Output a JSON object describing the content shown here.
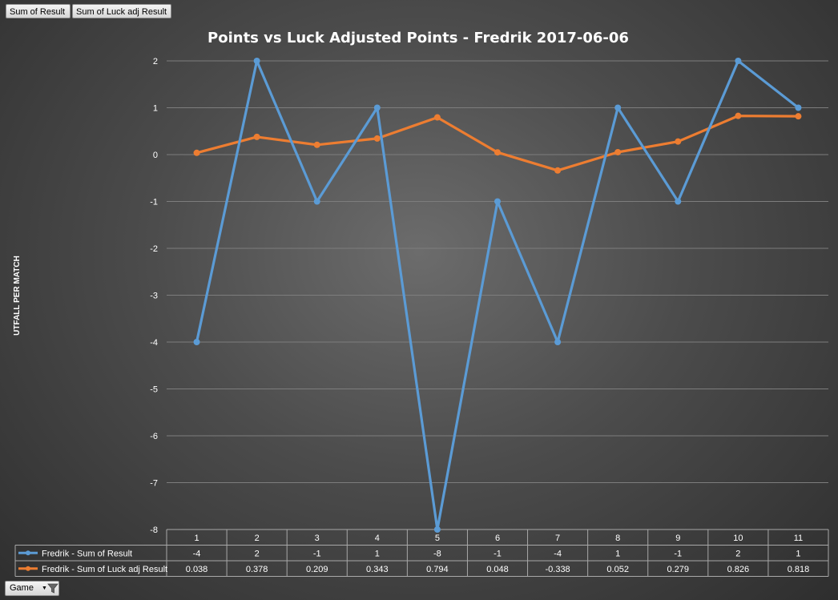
{
  "buttons": {
    "sum_of_result": "Sum of Result",
    "sum_of_luck_adj_result": "Sum of Luck adj Result",
    "game": "Game"
  },
  "chart_data": {
    "type": "line",
    "title": "Points vs Luck Adjusted Points - Fredrik 2017-06-06",
    "xlabel": "",
    "ylabel": "UTFALL PER MATCH",
    "ylim": [
      -8,
      2
    ],
    "yticks": [
      2,
      1,
      0,
      -1,
      -2,
      -3,
      -4,
      -5,
      -6,
      -7,
      -8
    ],
    "grid": true,
    "legend": "data-table",
    "categories": [
      "1",
      "2",
      "3",
      "4",
      "5",
      "6",
      "7",
      "8",
      "9",
      "10",
      "11"
    ],
    "series": [
      {
        "name": "Fredrik - Sum of Result",
        "color": "#5b9bd5",
        "values": [
          -4,
          2,
          -1,
          1,
          -8,
          -1,
          -4,
          1,
          -1,
          2,
          1
        ],
        "labels": [
          "-4",
          "2",
          "-1",
          "1",
          "-8",
          "-1",
          "-4",
          "1",
          "-1",
          "2",
          "1"
        ]
      },
      {
        "name": "Fredrik - Sum of Luck adj Result",
        "color": "#ed7d31",
        "values": [
          0.038,
          0.378,
          0.209,
          0.343,
          0.794,
          0.048,
          -0.338,
          0.052,
          0.279,
          0.826,
          0.818
        ],
        "labels": [
          "0.038",
          "0.378",
          "0.209",
          "0.343",
          "0.794",
          "0.048",
          "-0.338",
          "0.052",
          "0.279",
          "0.826",
          "0.818"
        ]
      }
    ]
  }
}
